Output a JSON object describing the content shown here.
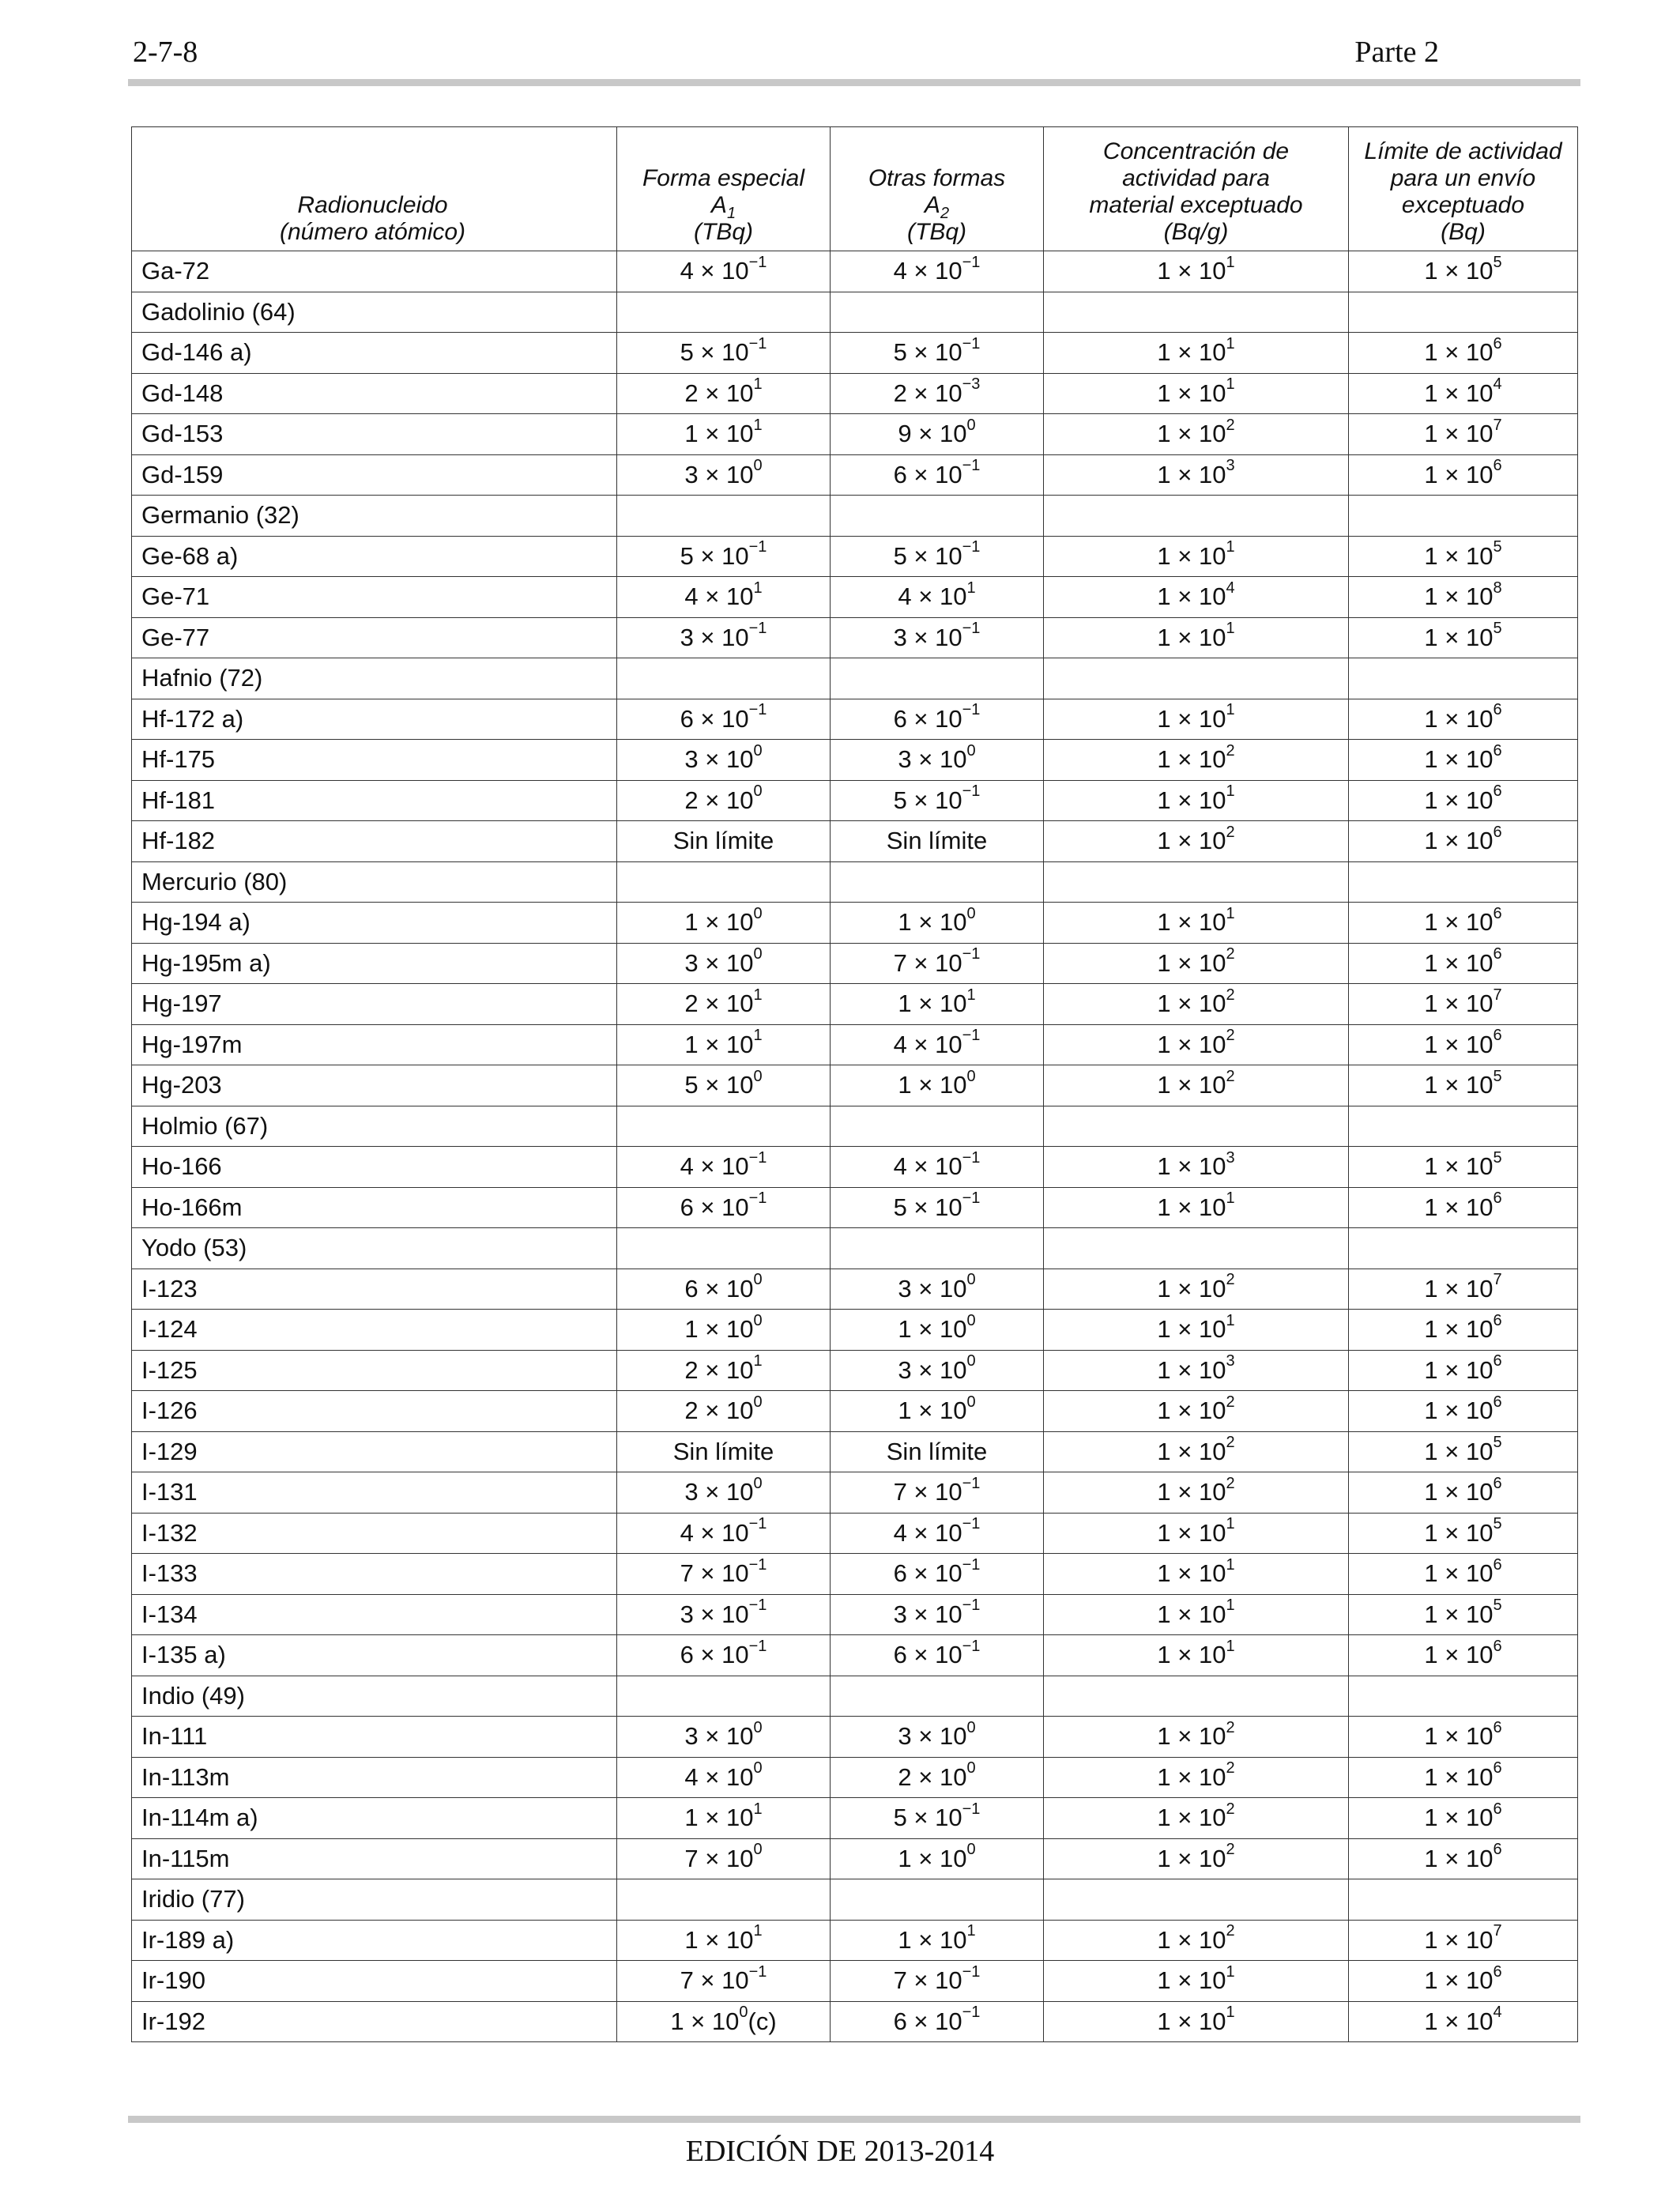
{
  "page": {
    "number": "2-7-8",
    "part": "Parte 2",
    "footer": "EDICIÓN DE 2013-2014"
  },
  "headers": [
    [
      "Radionucleido",
      "(número atómico)"
    ],
    [
      "Forma especial",
      "A",
      "(TBq)"
    ],
    [
      "Otras formas",
      "A",
      "(TBq)"
    ],
    [
      "Concentración de",
      "actividad para",
      "material exceptuado",
      "(Bq/g)"
    ],
    [
      "Límite de actividad",
      "para un envío",
      "exceptuado",
      "(Bq)"
    ]
  ],
  "header_subscripts": [
    "1",
    "2"
  ],
  "rows": [
    {
      "name": "Ga-72",
      "a1": [
        "4 × 10",
        "−1"
      ],
      "a2": [
        "4 × 10",
        "−1"
      ],
      "conc": [
        "1 × 10",
        "1"
      ],
      "limit": [
        "1 × 10",
        "5"
      ]
    },
    {
      "group": "Gadolinio (64)"
    },
    {
      "name": "Gd-146 a)",
      "a1": [
        "5 × 10",
        "−1"
      ],
      "a2": [
        "5 × 10",
        "−1"
      ],
      "conc": [
        "1 × 10",
        "1"
      ],
      "limit": [
        "1 × 10",
        "6"
      ]
    },
    {
      "name": "Gd-148",
      "a1": [
        "2 × 10",
        "1"
      ],
      "a2": [
        "2 × 10",
        "−3"
      ],
      "conc": [
        "1 × 10",
        "1"
      ],
      "limit": [
        "1 × 10",
        "4"
      ]
    },
    {
      "name": "Gd-153",
      "a1": [
        "1 × 10",
        "1"
      ],
      "a2": [
        "9 × 10",
        "0"
      ],
      "conc": [
        "1 × 10",
        "2"
      ],
      "limit": [
        "1 × 10",
        "7"
      ]
    },
    {
      "name": "Gd-159",
      "a1": [
        "3 × 10",
        "0"
      ],
      "a2": [
        "6 × 10",
        "−1"
      ],
      "conc": [
        "1 × 10",
        "3"
      ],
      "limit": [
        "1 × 10",
        "6"
      ]
    },
    {
      "group": "Germanio (32)"
    },
    {
      "name": "Ge-68 a)",
      "a1": [
        "5 × 10",
        "−1"
      ],
      "a2": [
        "5 × 10",
        "−1"
      ],
      "conc": [
        "1 × 10",
        "1"
      ],
      "limit": [
        "1 × 10",
        "5"
      ]
    },
    {
      "name": "Ge-71",
      "a1": [
        "4 × 10",
        "1"
      ],
      "a2": [
        "4 × 10",
        "1"
      ],
      "conc": [
        "1 × 10",
        "4"
      ],
      "limit": [
        "1 × 10",
        "8"
      ]
    },
    {
      "name": "Ge-77",
      "a1": [
        "3 × 10",
        "−1"
      ],
      "a2": [
        "3 × 10",
        "−1"
      ],
      "conc": [
        "1 × 10",
        "1"
      ],
      "limit": [
        "1 × 10",
        "5"
      ]
    },
    {
      "group": "Hafnio (72)"
    },
    {
      "name": "Hf-172 a)",
      "a1": [
        "6 × 10",
        "−1"
      ],
      "a2": [
        "6 × 10",
        "−1"
      ],
      "conc": [
        "1 × 10",
        "1"
      ],
      "limit": [
        "1 × 10",
        "6"
      ]
    },
    {
      "name": "Hf-175",
      "a1": [
        "3 × 10",
        "0"
      ],
      "a2": [
        "3 × 10",
        "0"
      ],
      "conc": [
        "1 × 10",
        "2"
      ],
      "limit": [
        "1 × 10",
        "6"
      ]
    },
    {
      "name": "Hf-181",
      "a1": [
        "2 × 10",
        "0"
      ],
      "a2": [
        "5 × 10",
        "−1"
      ],
      "conc": [
        "1 × 10",
        "1"
      ],
      "limit": [
        "1 × 10",
        "6"
      ]
    },
    {
      "name": "Hf-182",
      "a1": [
        "Sin límite",
        ""
      ],
      "a2": [
        "Sin límite",
        ""
      ],
      "conc": [
        "1 × 10",
        "2"
      ],
      "limit": [
        "1 × 10",
        "6"
      ]
    },
    {
      "group": "Mercurio (80)"
    },
    {
      "name": "Hg-194 a)",
      "a1": [
        "1 × 10",
        "0"
      ],
      "a2": [
        "1 × 10",
        "0"
      ],
      "conc": [
        "1 × 10",
        "1"
      ],
      "limit": [
        "1 × 10",
        "6"
      ]
    },
    {
      "name": "Hg-195m a)",
      "a1": [
        "3 × 10",
        "0"
      ],
      "a2": [
        "7 × 10",
        "−1"
      ],
      "conc": [
        "1 × 10",
        "2"
      ],
      "limit": [
        "1 × 10",
        "6"
      ]
    },
    {
      "name": "Hg-197",
      "a1": [
        "2 × 10",
        "1"
      ],
      "a2": [
        "1 × 10",
        "1"
      ],
      "conc": [
        "1 × 10",
        "2"
      ],
      "limit": [
        "1 × 10",
        "7"
      ]
    },
    {
      "name": "Hg-197m",
      "a1": [
        "1 × 10",
        "1"
      ],
      "a2": [
        "4 × 10",
        "−1"
      ],
      "conc": [
        "1 × 10",
        "2"
      ],
      "limit": [
        "1 × 10",
        "6"
      ]
    },
    {
      "name": "Hg-203",
      "a1": [
        "5 × 10",
        "0"
      ],
      "a2": [
        "1 × 10",
        "0"
      ],
      "conc": [
        "1 × 10",
        "2"
      ],
      "limit": [
        "1 × 10",
        "5"
      ]
    },
    {
      "group": "Holmio (67)"
    },
    {
      "name": "Ho-166",
      "a1": [
        "4 × 10",
        "−1"
      ],
      "a2": [
        "4 × 10",
        "−1"
      ],
      "conc": [
        "1 × 10",
        "3"
      ],
      "limit": [
        "1 × 10",
        "5"
      ]
    },
    {
      "name": "Ho-166m",
      "a1": [
        "6 × 10",
        "−1"
      ],
      "a2": [
        "5 × 10",
        "−1"
      ],
      "conc": [
        "1 × 10",
        "1"
      ],
      "limit": [
        "1 × 10",
        "6"
      ]
    },
    {
      "group": "Yodo (53)"
    },
    {
      "name": "I-123",
      "a1": [
        "6 × 10",
        "0"
      ],
      "a2": [
        "3 × 10",
        "0"
      ],
      "conc": [
        "1 × 10",
        "2"
      ],
      "limit": [
        "1 × 10",
        "7"
      ]
    },
    {
      "name": "I-124",
      "a1": [
        "1 × 10",
        "0"
      ],
      "a2": [
        "1 × 10",
        "0"
      ],
      "conc": [
        "1 × 10",
        "1"
      ],
      "limit": [
        "1 × 10",
        "6"
      ]
    },
    {
      "name": "I-125",
      "a1": [
        "2 × 10",
        "1"
      ],
      "a2": [
        "3 × 10",
        "0"
      ],
      "conc": [
        "1 × 10",
        "3"
      ],
      "limit": [
        "1 × 10",
        "6"
      ]
    },
    {
      "name": "I-126",
      "a1": [
        "2 × 10",
        "0"
      ],
      "a2": [
        "1 × 10",
        "0"
      ],
      "conc": [
        "1 × 10",
        "2"
      ],
      "limit": [
        "1 × 10",
        "6"
      ]
    },
    {
      "name": "I-129",
      "a1": [
        "Sin límite",
        ""
      ],
      "a2": [
        "Sin límite",
        ""
      ],
      "conc": [
        "1 × 10",
        "2"
      ],
      "limit": [
        "1 × 10",
        "5"
      ]
    },
    {
      "name": "I-131",
      "a1": [
        "3 × 10",
        "0"
      ],
      "a2": [
        "7 × 10",
        "−1"
      ],
      "conc": [
        "1 × 10",
        "2"
      ],
      "limit": [
        "1 × 10",
        "6"
      ]
    },
    {
      "name": "I-132",
      "a1": [
        "4 × 10",
        "−1"
      ],
      "a2": [
        "4 × 10",
        "−1"
      ],
      "conc": [
        "1 × 10",
        "1"
      ],
      "limit": [
        "1 × 10",
        "5"
      ]
    },
    {
      "name": "I-133",
      "a1": [
        "7 × 10",
        "−1"
      ],
      "a2": [
        "6 × 10",
        "−1"
      ],
      "conc": [
        "1 × 10",
        "1"
      ],
      "limit": [
        "1 × 10",
        "6"
      ]
    },
    {
      "name": "I-134",
      "a1": [
        "3 × 10",
        "−1"
      ],
      "a2": [
        "3 × 10",
        "−1"
      ],
      "conc": [
        "1 × 10",
        "1"
      ],
      "limit": [
        "1 × 10",
        "5"
      ]
    },
    {
      "name": "I-135 a)",
      "a1": [
        "6 × 10",
        "−1"
      ],
      "a2": [
        "6 × 10",
        "−1"
      ],
      "conc": [
        "1 × 10",
        "1"
      ],
      "limit": [
        "1 × 10",
        "6"
      ]
    },
    {
      "group": "Indio (49)"
    },
    {
      "name": "In-111",
      "a1": [
        "3 × 10",
        "0"
      ],
      "a2": [
        "3 × 10",
        "0"
      ],
      "conc": [
        "1 × 10",
        "2"
      ],
      "limit": [
        "1 × 10",
        "6"
      ]
    },
    {
      "name": "In-113m",
      "a1": [
        "4 × 10",
        "0"
      ],
      "a2": [
        "2 × 10",
        "0"
      ],
      "conc": [
        "1 × 10",
        "2"
      ],
      "limit": [
        "1 × 10",
        "6"
      ]
    },
    {
      "name": "In-114m a)",
      "a1": [
        "1 × 10",
        "1"
      ],
      "a2": [
        "5 × 10",
        "−1"
      ],
      "conc": [
        "1 × 10",
        "2"
      ],
      "limit": [
        "1 × 10",
        "6"
      ]
    },
    {
      "name": "In-115m",
      "a1": [
        "7 × 10",
        "0"
      ],
      "a2": [
        "1 × 10",
        "0"
      ],
      "conc": [
        "1 × 10",
        "2"
      ],
      "limit": [
        "1 × 10",
        "6"
      ]
    },
    {
      "group": "Iridio (77)"
    },
    {
      "name": "Ir-189 a)",
      "a1": [
        "1 × 10",
        "1"
      ],
      "a2": [
        "1 × 10",
        "1"
      ],
      "conc": [
        "1 × 10",
        "2"
      ],
      "limit": [
        "1 × 10",
        "7"
      ]
    },
    {
      "name": "Ir-190",
      "a1": [
        "7 × 10",
        "−1"
      ],
      "a2": [
        "7 × 10",
        "−1"
      ],
      "conc": [
        "1 × 10",
        "1"
      ],
      "limit": [
        "1 × 10",
        "6"
      ]
    },
    {
      "name": "Ir-192",
      "a1": [
        "1 × 10",
        "0",
        "(c)"
      ],
      "a2": [
        "6 × 10",
        "−1"
      ],
      "conc": [
        "1 × 10",
        "1"
      ],
      "limit": [
        "1 × 10",
        "4"
      ]
    }
  ]
}
